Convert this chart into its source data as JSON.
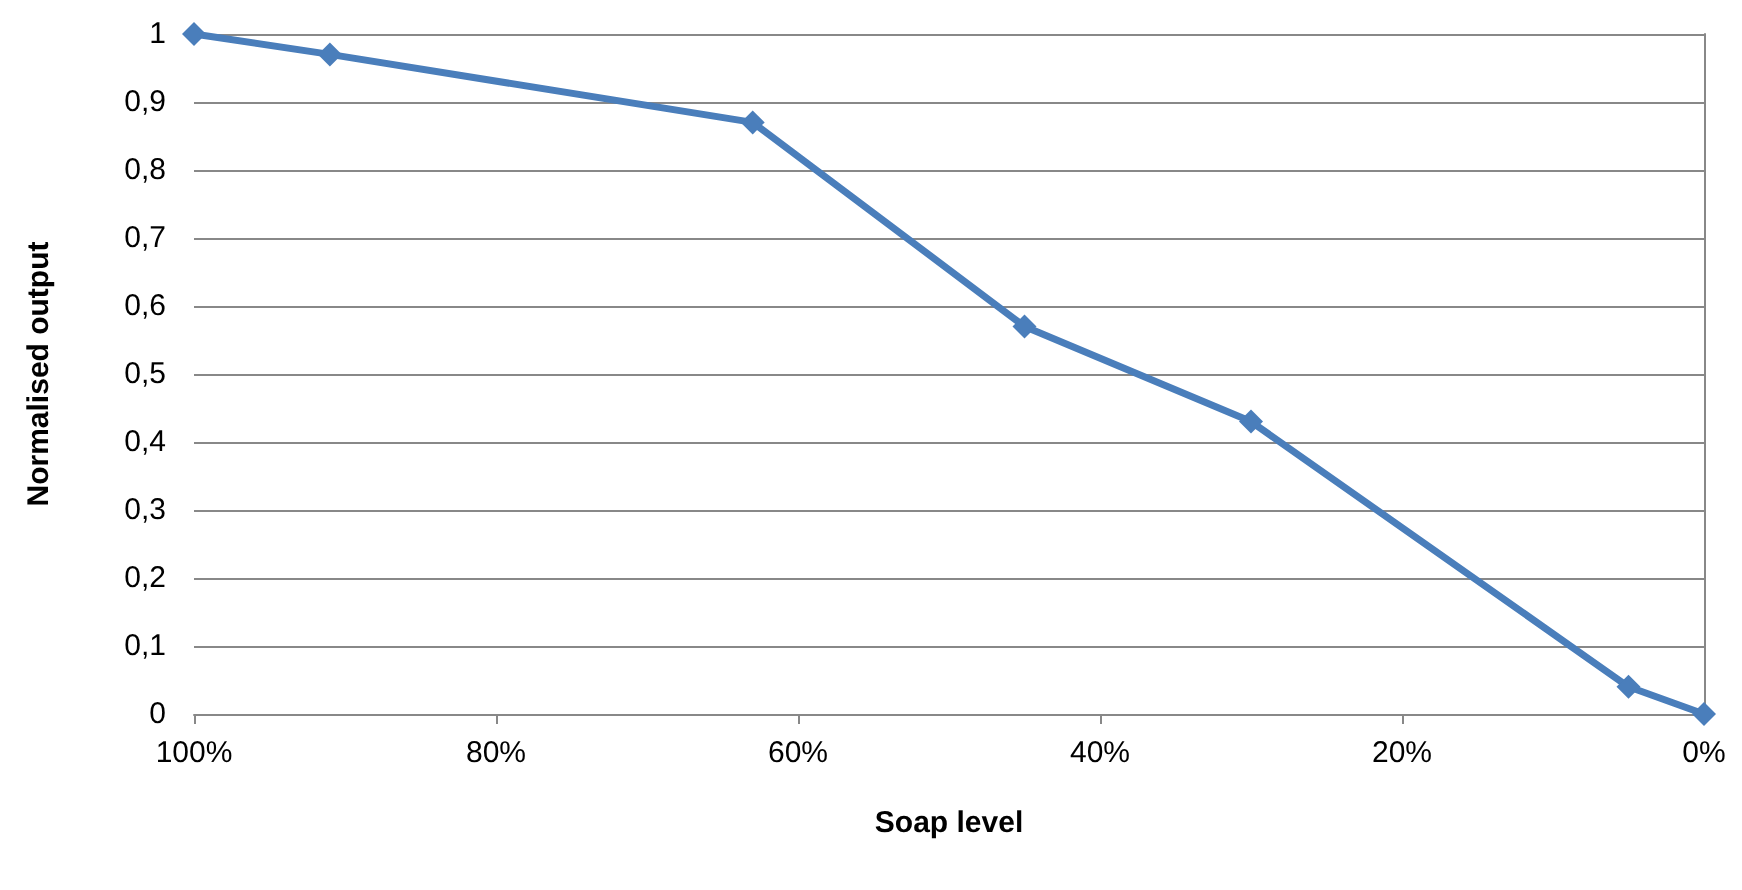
{
  "chart_data": {
    "type": "line",
    "xlabel": "Soap level",
    "ylabel": "Normalised output",
    "x": [
      100,
      91,
      63,
      45,
      30,
      5,
      0
    ],
    "series": [
      {
        "color": "#4a7ebb",
        "values": [
          1,
          0.97,
          0.87,
          0.57,
          0.43,
          0.04,
          0
        ]
      }
    ],
    "xlim": [
      100,
      0
    ],
    "xticks": [
      {
        "value": 100,
        "label": "100%"
      },
      {
        "value": 80,
        "label": "80%"
      },
      {
        "value": 60,
        "label": "60%"
      },
      {
        "value": 40,
        "label": "40%"
      },
      {
        "value": 20,
        "label": "20%"
      },
      {
        "value": 0,
        "label": "0%"
      }
    ],
    "ylim": [
      0,
      1
    ],
    "yticks": [
      0,
      {
        "value": 0.1,
        "label": "0,1"
      },
      {
        "value": 0.2,
        "label": "0,2"
      },
      {
        "value": 0.3,
        "label": "0,3"
      },
      {
        "value": 0.4,
        "label": "0,4"
      },
      {
        "value": 0.5,
        "label": "0,5"
      },
      {
        "value": 0.6,
        "label": "0,6"
      },
      {
        "value": 0.7,
        "label": "0,7"
      },
      {
        "value": 0.8,
        "label": "0,8"
      },
      {
        "value": 0.9,
        "label": "0,9"
      },
      1
    ],
    "grid": "y",
    "marker": "diamond",
    "line_style": "solid"
  }
}
